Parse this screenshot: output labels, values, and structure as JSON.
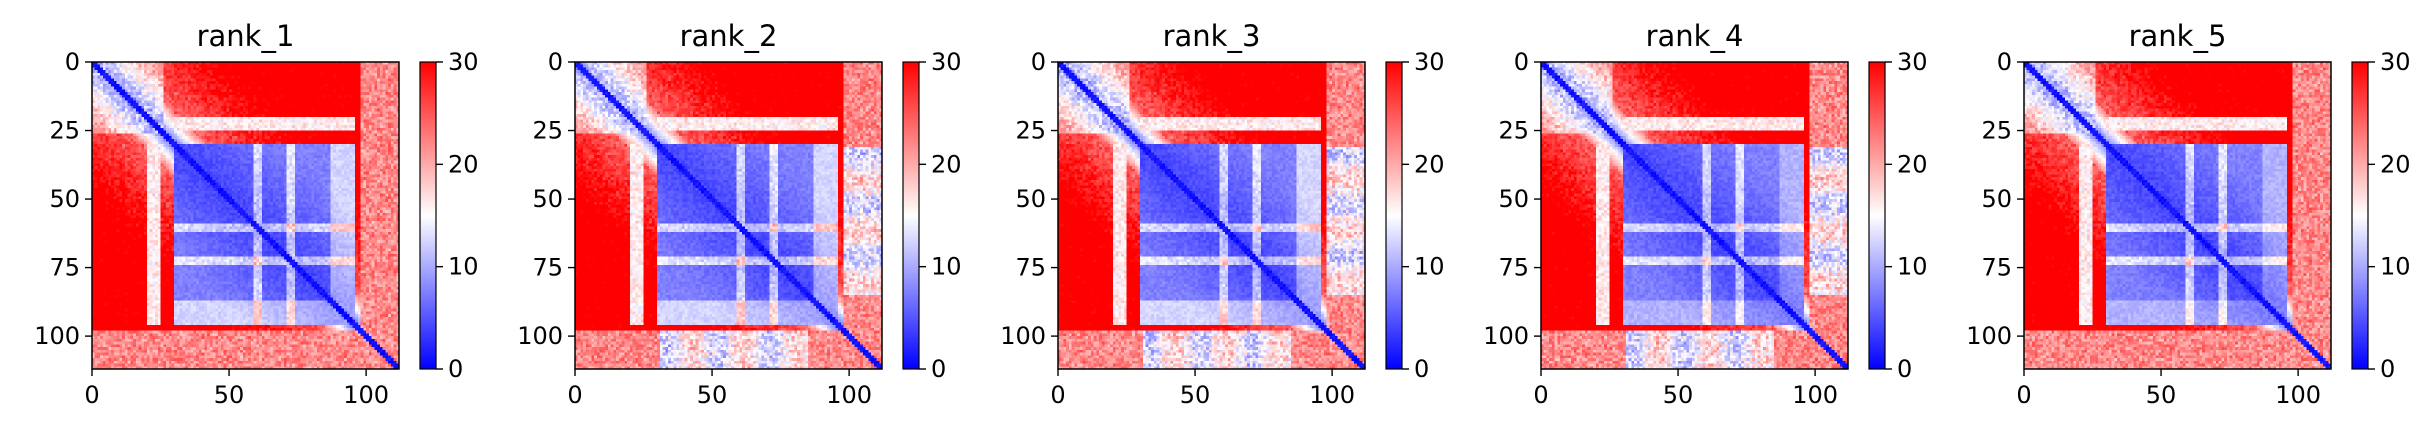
{
  "chart_data": [
    {
      "type": "heatmap",
      "title": "rank_1",
      "matrix_size": 112,
      "ticks": [
        0,
        25,
        50,
        75,
        100
      ],
      "x_ticks": [
        0,
        50,
        100
      ],
      "colorbar": {
        "colormap": "bwr",
        "min": 0,
        "max": 30,
        "ticks": [
          0,
          10,
          20,
          30
        ]
      },
      "regions": {
        "blue_block": [
          30,
          95
        ],
        "n_term_block": [
          0,
          25
        ],
        "white_stripes": [
          60,
          72
        ],
        "bottom_rows_contact": "none",
        "right_edge_mid": "light"
      }
    },
    {
      "type": "heatmap",
      "title": "rank_2",
      "matrix_size": 112,
      "ticks": [
        0,
        25,
        50,
        75,
        100
      ],
      "x_ticks": [
        0,
        50,
        100
      ],
      "colorbar": {
        "colormap": "bwr",
        "min": 0,
        "max": 30,
        "ticks": [
          0,
          10,
          20,
          30
        ]
      },
      "regions": {
        "blue_block": [
          30,
          95
        ],
        "n_term_block": [
          0,
          25
        ],
        "white_stripes": [
          60,
          72
        ],
        "bottom_rows_contact": "partial",
        "right_edge_mid": "light"
      }
    },
    {
      "type": "heatmap",
      "title": "rank_3",
      "matrix_size": 112,
      "ticks": [
        0,
        25,
        50,
        75,
        100
      ],
      "x_ticks": [
        0,
        50,
        100
      ],
      "colorbar": {
        "colormap": "bwr",
        "min": 0,
        "max": 30,
        "ticks": [
          0,
          10,
          20,
          30
        ]
      },
      "regions": {
        "blue_block": [
          30,
          95
        ],
        "n_term_block": [
          0,
          25
        ],
        "white_stripes": [
          60,
          72
        ],
        "bottom_rows_contact": "partial",
        "right_edge_mid": "light"
      }
    },
    {
      "type": "heatmap",
      "title": "rank_4",
      "matrix_size": 112,
      "ticks": [
        0,
        25,
        50,
        75,
        100
      ],
      "x_ticks": [
        0,
        50,
        100
      ],
      "colorbar": {
        "colormap": "bwr",
        "min": 0,
        "max": 30,
        "ticks": [
          0,
          10,
          20,
          30
        ]
      },
      "regions": {
        "blue_block": [
          30,
          95
        ],
        "n_term_block": [
          0,
          25
        ],
        "white_stripes": [
          60,
          72
        ],
        "bottom_rows_contact": "partial",
        "right_edge_mid": "medium"
      }
    },
    {
      "type": "heatmap",
      "title": "rank_5",
      "matrix_size": 112,
      "ticks": [
        0,
        25,
        50,
        75,
        100
      ],
      "x_ticks": [
        0,
        50,
        100
      ],
      "colorbar": {
        "colormap": "bwr",
        "min": 0,
        "max": 30,
        "ticks": [
          0,
          10,
          20,
          30
        ]
      },
      "regions": {
        "blue_block": [
          30,
          95
        ],
        "n_term_block": [
          0,
          25
        ],
        "white_stripes": [
          60,
          72
        ],
        "bottom_rows_contact": "none",
        "right_edge_mid": "medium"
      }
    }
  ],
  "colors": {
    "low": "#0000ff",
    "mid": "#ffffff",
    "high": "#ff0000",
    "axis": "#000000"
  }
}
